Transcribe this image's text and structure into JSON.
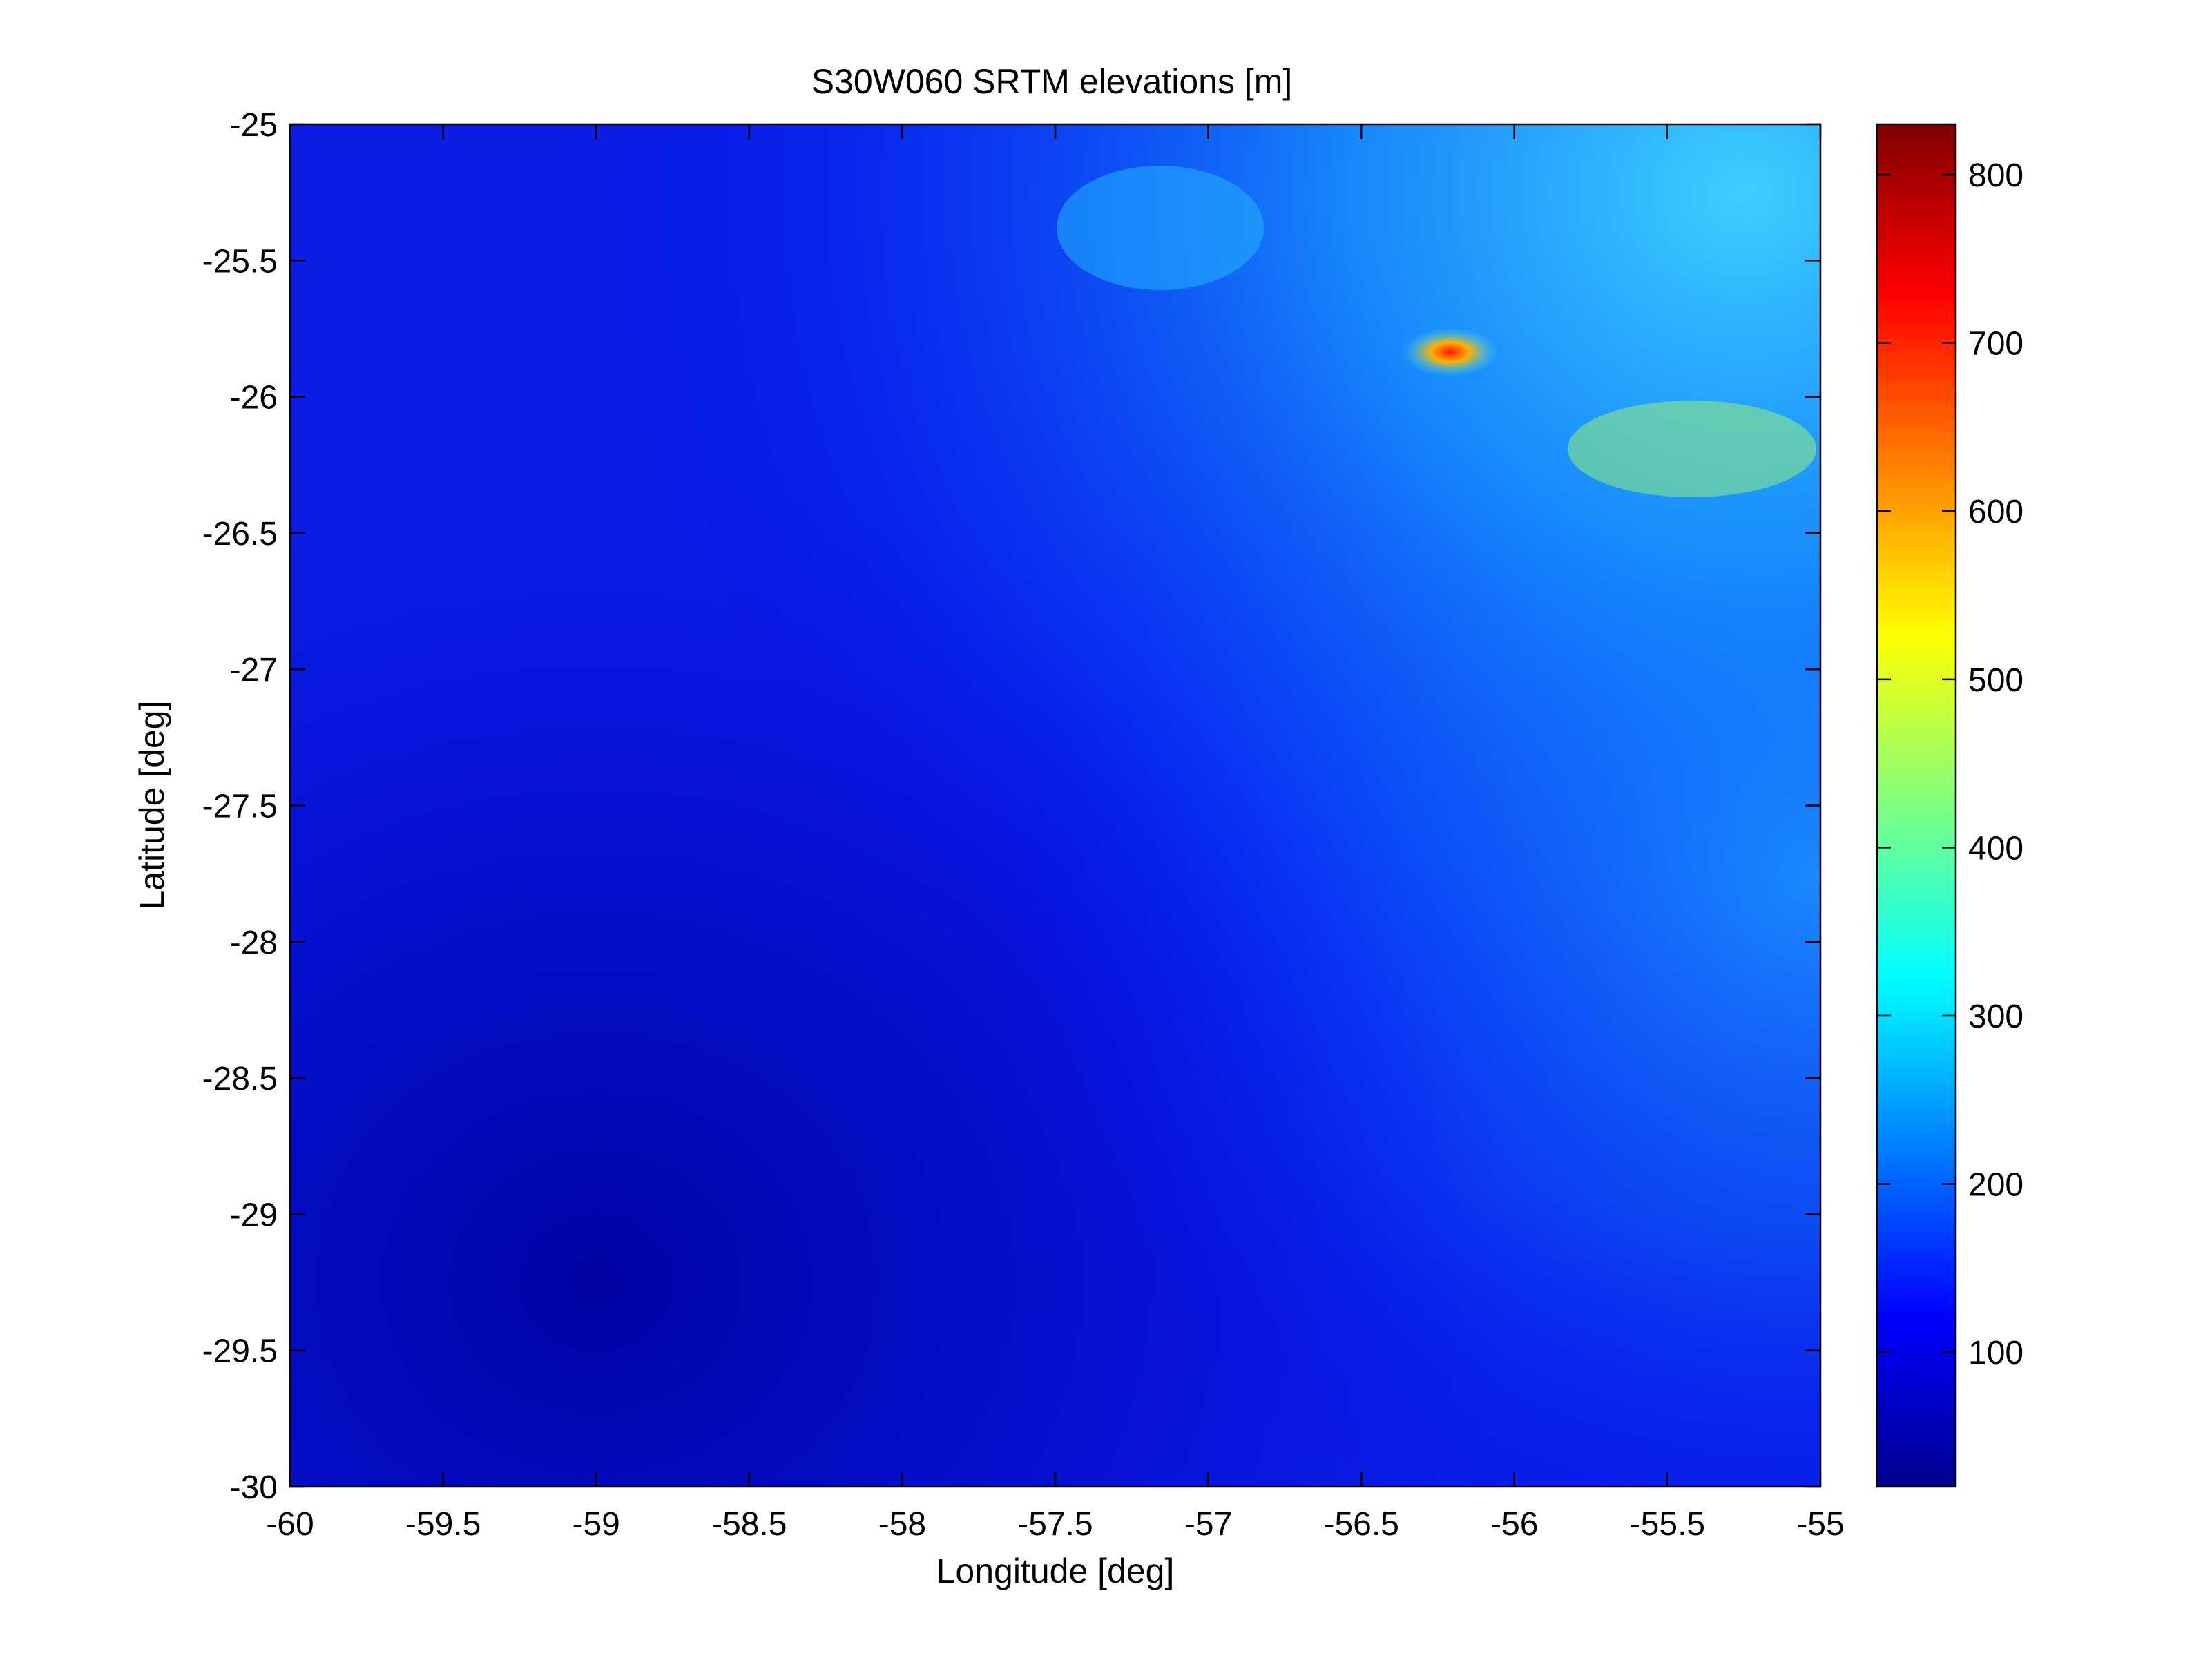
{
  "chart_data": {
    "type": "heatmap",
    "title": "S30W060 SRTM elevations [m]",
    "xlabel": "Longitude [deg]",
    "ylabel": "Latitude [deg]",
    "xlim": [
      -60,
      -55
    ],
    "ylim": [
      -30,
      -25
    ],
    "xticks": [
      "-60",
      "-59.5",
      "-59",
      "-58.5",
      "-58",
      "-57.5",
      "-57",
      "-56.5",
      "-56",
      "-55.5",
      "-55"
    ],
    "yticks": [
      "-25",
      "-25.5",
      "-26",
      "-26.5",
      "-27",
      "-27.5",
      "-28",
      "-28.5",
      "-29",
      "-29.5",
      "-30"
    ],
    "colorbar": {
      "colormap": "jet",
      "range": [
        20,
        830
      ],
      "ticks": [
        "100",
        "200",
        "300",
        "400",
        "500",
        "600",
        "700",
        "800"
      ]
    },
    "colors": {
      "low": "#00008f",
      "mid_low": "#0000ff",
      "mid": "#00ffff",
      "mid_high": "#ffff00",
      "high": "#ff0000",
      "max": "#800000"
    }
  }
}
